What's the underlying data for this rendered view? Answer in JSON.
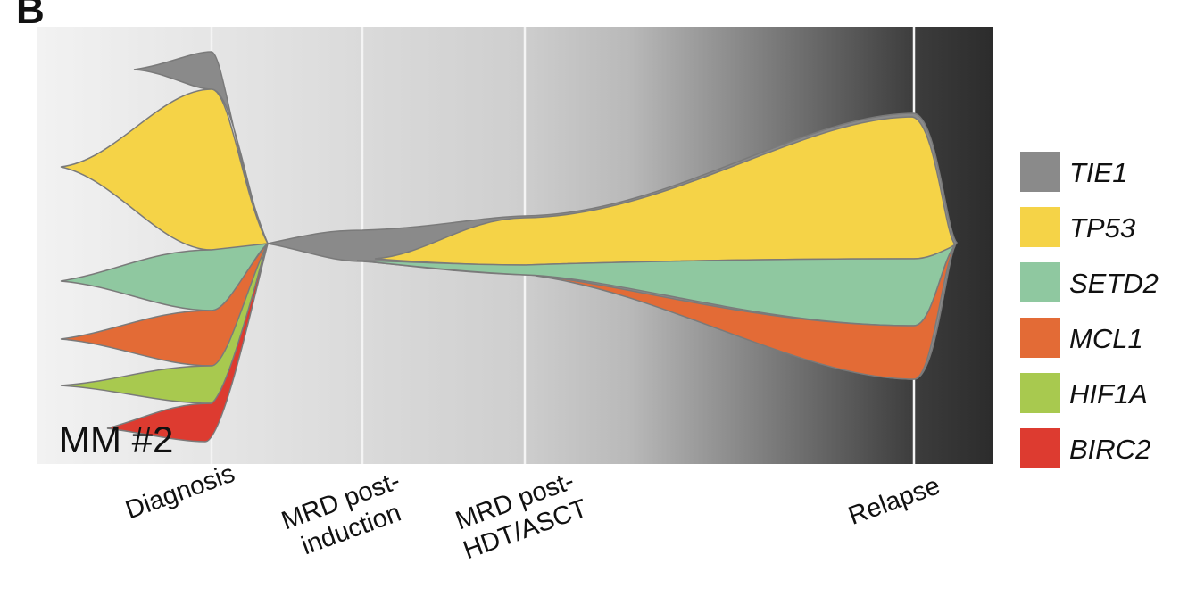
{
  "panel_label": "B",
  "sample_label": "MM #2",
  "timepoints": [
    {
      "lines": [
        "Diagnosis"
      ]
    },
    {
      "lines": [
        "MRD post-",
        "induction"
      ]
    },
    {
      "lines": [
        "MRD post-",
        "HDT/ASCT"
      ]
    },
    {
      "lines": [
        "Relapse"
      ]
    }
  ],
  "legend": [
    {
      "label": "TIE1",
      "color": "#8a8a8a"
    },
    {
      "label": "TP53",
      "color": "#f5d347"
    },
    {
      "label": "SETD2",
      "color": "#8fc8a0"
    },
    {
      "label": "MCL1",
      "color": "#e36b36"
    },
    {
      "label": "HIF1A",
      "color": "#a8c94f"
    },
    {
      "label": "BIRC2",
      "color": "#dd3b30"
    }
  ]
}
